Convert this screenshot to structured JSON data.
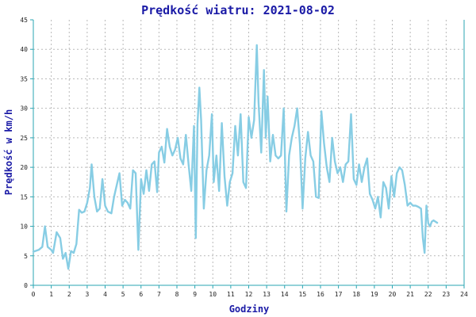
{
  "colors": {
    "title": "#1a1aa6",
    "axis": "#2aa6b3",
    "line": "#87cde4",
    "grid": "#b9b9b9",
    "background": "#ffffff"
  },
  "chart_data": {
    "type": "line",
    "title": "Prędkość wiatru: 2021-08-02",
    "xlabel": "Godziny",
    "ylabel": "Prędkość w km/h",
    "xlim": [
      0,
      24
    ],
    "ylim": [
      0,
      45
    ],
    "grid": true,
    "legend": "none",
    "x_ticks": [
      "0",
      "1",
      "2",
      "3",
      "4",
      "5",
      "6",
      "7",
      "8",
      "9",
      "10",
      "11",
      "12",
      "13",
      "14",
      "15",
      "16",
      "17",
      "18",
      "19",
      "20",
      "21",
      "22",
      "23",
      "24"
    ],
    "y_ticks": [
      "0",
      "5",
      "10",
      "15",
      "20",
      "25",
      "30",
      "35",
      "40",
      "45"
    ],
    "series": [
      {
        "values": [
          [
            0.0,
            5.7
          ],
          [
            0.3,
            6.0
          ],
          [
            0.5,
            6.5
          ],
          [
            0.65,
            10.0
          ],
          [
            0.8,
            6.5
          ],
          [
            1.0,
            6.0
          ],
          [
            1.1,
            5.5
          ],
          [
            1.3,
            9.0
          ],
          [
            1.5,
            8.0
          ],
          [
            1.65,
            4.5
          ],
          [
            1.8,
            5.5
          ],
          [
            1.95,
            2.8
          ],
          [
            2.1,
            5.8
          ],
          [
            2.25,
            5.5
          ],
          [
            2.4,
            7.0
          ],
          [
            2.55,
            12.8
          ],
          [
            2.7,
            12.3
          ],
          [
            2.85,
            12.5
          ],
          [
            3.0,
            14.0
          ],
          [
            3.15,
            16.5
          ],
          [
            3.25,
            20.5
          ],
          [
            3.4,
            15.0
          ],
          [
            3.55,
            12.5
          ],
          [
            3.7,
            13.0
          ],
          [
            3.85,
            18.0
          ],
          [
            4.0,
            13.5
          ],
          [
            4.15,
            12.5
          ],
          [
            4.35,
            12.2
          ],
          [
            4.5,
            15.0
          ],
          [
            4.65,
            17.0
          ],
          [
            4.8,
            19.0
          ],
          [
            4.95,
            13.5
          ],
          [
            5.1,
            14.5
          ],
          [
            5.25,
            14.0
          ],
          [
            5.4,
            13.0
          ],
          [
            5.55,
            19.5
          ],
          [
            5.7,
            19.0
          ],
          [
            5.85,
            6.0
          ],
          [
            6.0,
            18.0
          ],
          [
            6.15,
            15.5
          ],
          [
            6.3,
            19.5
          ],
          [
            6.45,
            16.0
          ],
          [
            6.6,
            20.5
          ],
          [
            6.75,
            21.0
          ],
          [
            6.9,
            15.8
          ],
          [
            7.0,
            22.5
          ],
          [
            7.15,
            23.5
          ],
          [
            7.3,
            20.8
          ],
          [
            7.45,
            26.5
          ],
          [
            7.6,
            23.5
          ],
          [
            7.75,
            22.0
          ],
          [
            7.9,
            23.0
          ],
          [
            8.05,
            25.0
          ],
          [
            8.2,
            21.5
          ],
          [
            8.35,
            20.5
          ],
          [
            8.5,
            25.5
          ],
          [
            8.65,
            20.5
          ],
          [
            8.8,
            16.0
          ],
          [
            8.95,
            27.0
          ],
          [
            9.05,
            8.0
          ],
          [
            9.15,
            27.5
          ],
          [
            9.25,
            33.5
          ],
          [
            9.35,
            28.0
          ],
          [
            9.5,
            13.0
          ],
          [
            9.65,
            19.5
          ],
          [
            9.8,
            22.0
          ],
          [
            9.95,
            29.0
          ],
          [
            10.05,
            17.5
          ],
          [
            10.2,
            22.0
          ],
          [
            10.35,
            16.0
          ],
          [
            10.5,
            27.5
          ],
          [
            10.65,
            18.5
          ],
          [
            10.8,
            13.5
          ],
          [
            10.95,
            17.5
          ],
          [
            11.1,
            19.0
          ],
          [
            11.25,
            27.0
          ],
          [
            11.4,
            22.0
          ],
          [
            11.55,
            29.0
          ],
          [
            11.7,
            17.5
          ],
          [
            11.85,
            16.5
          ],
          [
            12.0,
            28.5
          ],
          [
            12.15,
            25.0
          ],
          [
            12.3,
            28.0
          ],
          [
            12.45,
            40.7
          ],
          [
            12.55,
            31.0
          ],
          [
            12.7,
            22.5
          ],
          [
            12.85,
            36.5
          ],
          [
            12.95,
            25.0
          ],
          [
            13.05,
            32.0
          ],
          [
            13.2,
            21.0
          ],
          [
            13.35,
            25.5
          ],
          [
            13.5,
            22.0
          ],
          [
            13.65,
            21.5
          ],
          [
            13.8,
            22.0
          ],
          [
            13.95,
            30.0
          ],
          [
            14.1,
            12.5
          ],
          [
            14.25,
            22.0
          ],
          [
            14.4,
            25.0
          ],
          [
            14.55,
            27.0
          ],
          [
            14.7,
            30.0
          ],
          [
            14.85,
            24.0
          ],
          [
            15.0,
            13.0
          ],
          [
            15.15,
            21.5
          ],
          [
            15.3,
            26.0
          ],
          [
            15.45,
            22.0
          ],
          [
            15.6,
            21.0
          ],
          [
            15.75,
            15.0
          ],
          [
            15.9,
            14.8
          ],
          [
            16.05,
            29.5
          ],
          [
            16.2,
            24.0
          ],
          [
            16.35,
            20.0
          ],
          [
            16.5,
            17.5
          ],
          [
            16.65,
            25.0
          ],
          [
            16.8,
            21.0
          ],
          [
            16.95,
            19.0
          ],
          [
            17.1,
            20.0
          ],
          [
            17.25,
            17.5
          ],
          [
            17.4,
            20.5
          ],
          [
            17.55,
            21.0
          ],
          [
            17.7,
            29.0
          ],
          [
            17.85,
            18.0
          ],
          [
            18.0,
            17.0
          ],
          [
            18.15,
            20.5
          ],
          [
            18.3,
            17.5
          ],
          [
            18.45,
            20.0
          ],
          [
            18.6,
            21.5
          ],
          [
            18.75,
            15.5
          ],
          [
            18.9,
            14.5
          ],
          [
            19.05,
            13.0
          ],
          [
            19.2,
            15.0
          ],
          [
            19.35,
            11.5
          ],
          [
            19.5,
            17.5
          ],
          [
            19.65,
            16.5
          ],
          [
            19.8,
            13.0
          ],
          [
            19.95,
            18.5
          ],
          [
            20.1,
            15.0
          ],
          [
            20.25,
            19.0
          ],
          [
            20.4,
            20.0
          ],
          [
            20.55,
            19.5
          ],
          [
            20.7,
            17.0
          ],
          [
            20.85,
            13.5
          ],
          [
            21.0,
            14.0
          ],
          [
            21.15,
            13.5
          ],
          [
            21.3,
            13.5
          ],
          [
            21.45,
            13.3
          ],
          [
            21.6,
            13.0
          ],
          [
            21.7,
            8.0
          ],
          [
            21.8,
            5.5
          ],
          [
            21.9,
            13.5
          ],
          [
            22.0,
            10.5
          ],
          [
            22.1,
            10.0
          ],
          [
            22.2,
            10.8
          ],
          [
            22.3,
            11.0
          ],
          [
            22.4,
            10.8
          ],
          [
            22.5,
            10.6
          ]
        ]
      }
    ]
  }
}
